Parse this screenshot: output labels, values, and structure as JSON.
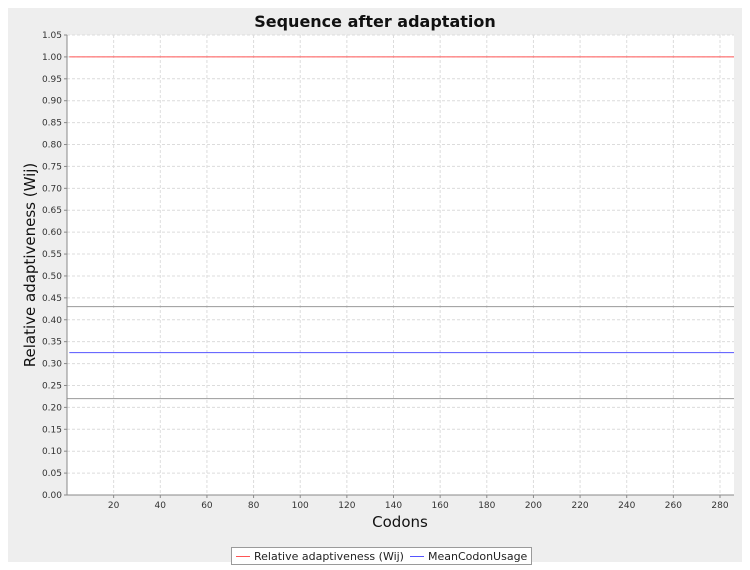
{
  "chart_data": {
    "type": "line",
    "title": "Sequence after adaptation",
    "xlabel": "Codons",
    "ylabel": "Relative adaptiveness (Wij)",
    "xlim": [
      0,
      286
    ],
    "ylim": [
      0.0,
      1.05
    ],
    "x_ticks": [
      20,
      40,
      60,
      80,
      100,
      120,
      140,
      160,
      180,
      200,
      220,
      240,
      260,
      280
    ],
    "y_ticks": [
      0.0,
      0.05,
      0.1,
      0.15,
      0.2,
      0.25,
      0.3,
      0.35,
      0.4,
      0.45,
      0.5,
      0.55,
      0.6,
      0.65,
      0.7,
      0.75,
      0.8,
      0.85,
      0.9,
      0.95,
      1.0,
      1.05
    ],
    "y_tick_labels": [
      "0.00",
      "0.05",
      "0.10",
      "0.15",
      "0.20",
      "0.25",
      "0.30",
      "0.35",
      "0.40",
      "0.45",
      "0.50",
      "0.55",
      "0.60",
      "0.65",
      "0.70",
      "0.75",
      "0.80",
      "0.85",
      "0.90",
      "0.95",
      "1.00",
      "1.05"
    ],
    "grid": true,
    "legend_position": "bottom",
    "series": [
      {
        "name": "Relative adaptiveness (Wij)",
        "color": "#ff5555",
        "x": [
          1,
          286
        ],
        "y": [
          1.0,
          1.0
        ]
      },
      {
        "name": "MeanCodonUsage",
        "color": "#5555ff",
        "x": [
          1,
          286
        ],
        "y": [
          0.325,
          0.325
        ]
      }
    ],
    "reference_lines": [
      {
        "y": 0.43,
        "color": "#999999"
      },
      {
        "y": 0.22,
        "color": "#999999"
      }
    ]
  },
  "legend": {
    "items": [
      {
        "label": "Relative adaptiveness (Wij)",
        "color": "#ff5555"
      },
      {
        "label": "MeanCodonUsage",
        "color": "#5555ff"
      }
    ]
  }
}
